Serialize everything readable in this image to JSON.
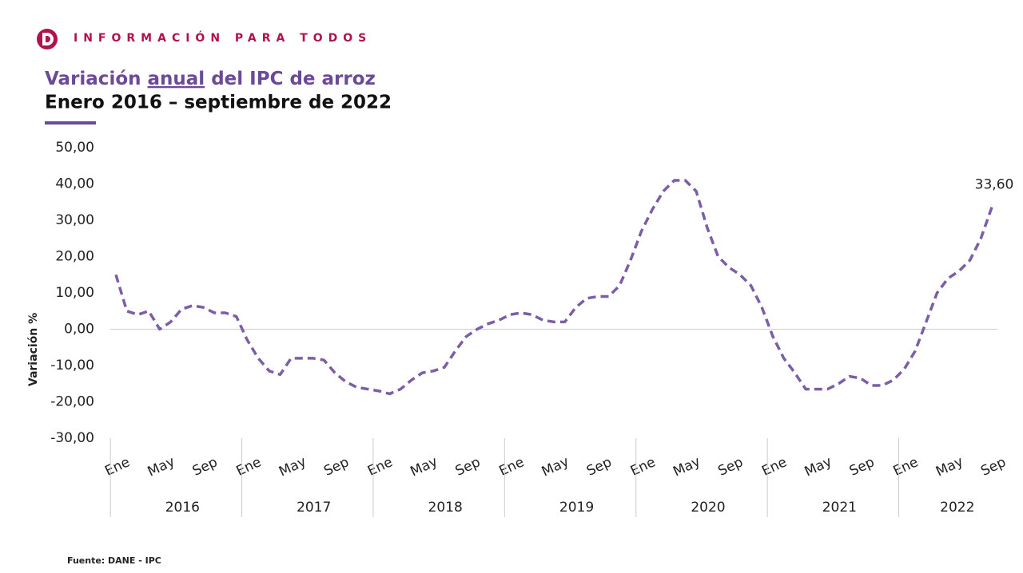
{
  "header": {
    "brand": "INFORMACIÓN PARA TODOS"
  },
  "chart_data": {
    "type": "line",
    "title_parts": [
      "Variación ",
      "anual",
      " del IPC de arroz"
    ],
    "subtitle": "Enero 2016 – septiembre de 2022",
    "y_label": "Variación %",
    "source": "Fuente: DANE - IPC",
    "categories": [
      "Ene",
      null,
      null,
      null,
      "May",
      null,
      null,
      null,
      "Sep",
      null,
      null,
      null,
      "Ene",
      null,
      null,
      null,
      "May",
      null,
      null,
      null,
      "Sep",
      null,
      null,
      null,
      "Ene",
      null,
      null,
      null,
      "May",
      null,
      null,
      null,
      "Sep",
      null,
      null,
      null,
      "Ene",
      null,
      null,
      null,
      "May",
      null,
      null,
      null,
      "Sep",
      null,
      null,
      null,
      "Ene",
      null,
      null,
      null,
      "May",
      null,
      null,
      null,
      "Sep",
      null,
      null,
      null,
      "Ene",
      null,
      null,
      null,
      "May",
      null,
      null,
      null,
      "Sep",
      null,
      null,
      null,
      "Ene",
      null,
      null,
      null,
      "May",
      null,
      null,
      null,
      "Sep"
    ],
    "year_groups": [
      "2016",
      "2017",
      "2018",
      "2019",
      "2020",
      "2021",
      "2022"
    ],
    "series": [
      {
        "name": "Variación anual",
        "color": "#7b5ea7",
        "values": [
          15,
          5,
          4,
          5,
          0,
          2,
          5.5,
          6.5,
          6,
          4.5,
          4.5,
          3.5,
          -3,
          -8,
          -11.5,
          -12.5,
          -8,
          -8,
          -8,
          -8.5,
          -12,
          -14.5,
          -16,
          -16.5,
          -17,
          -17.8,
          -16.5,
          -14,
          -12,
          -11.5,
          -10.5,
          -6,
          -2,
          0,
          1.5,
          2.5,
          4,
          4.5,
          4,
          2.5,
          2,
          2,
          6,
          8.5,
          9,
          9,
          12,
          19,
          27,
          33,
          38,
          41,
          41,
          38,
          28,
          20,
          17,
          15,
          12,
          6,
          -2,
          -8,
          -12,
          -16.5,
          -16.5,
          -16.5,
          -15,
          -13,
          -13.5,
          -15.5,
          -15.5,
          -14,
          -11,
          -6,
          2,
          10,
          14,
          16,
          19,
          25,
          33.6
        ],
        "value_labels": [
          null,
          null,
          null,
          null,
          null,
          null,
          null,
          null,
          null,
          null,
          null,
          null,
          null,
          null,
          null,
          null,
          null,
          null,
          null,
          null,
          null,
          null,
          null,
          null,
          null,
          null,
          null,
          null,
          null,
          null,
          null,
          null,
          null,
          null,
          null,
          null,
          null,
          null,
          null,
          null,
          null,
          null,
          null,
          null,
          null,
          null,
          null,
          null,
          null,
          null,
          null,
          null,
          null,
          null,
          null,
          null,
          null,
          null,
          null,
          null,
          null,
          null,
          null,
          null,
          null,
          null,
          null,
          null,
          null,
          null,
          null,
          null,
          null,
          null,
          null,
          null,
          null,
          null,
          null,
          null,
          "33,60"
        ]
      }
    ],
    "ylim": [
      -30,
      50
    ],
    "yticks": [
      {
        "value": -30,
        "label": "-30,00"
      },
      {
        "value": -20,
        "label": "-20,00"
      },
      {
        "value": -10,
        "label": "-10,00"
      },
      {
        "value": 0,
        "label": "0,00"
      },
      {
        "value": 10,
        "label": "10,00"
      },
      {
        "value": 20,
        "label": "20,00"
      },
      {
        "value": 30,
        "label": "30,00"
      },
      {
        "value": 40,
        "label": "40,00"
      },
      {
        "value": 50,
        "label": "50,00"
      }
    ],
    "grid": false
  }
}
